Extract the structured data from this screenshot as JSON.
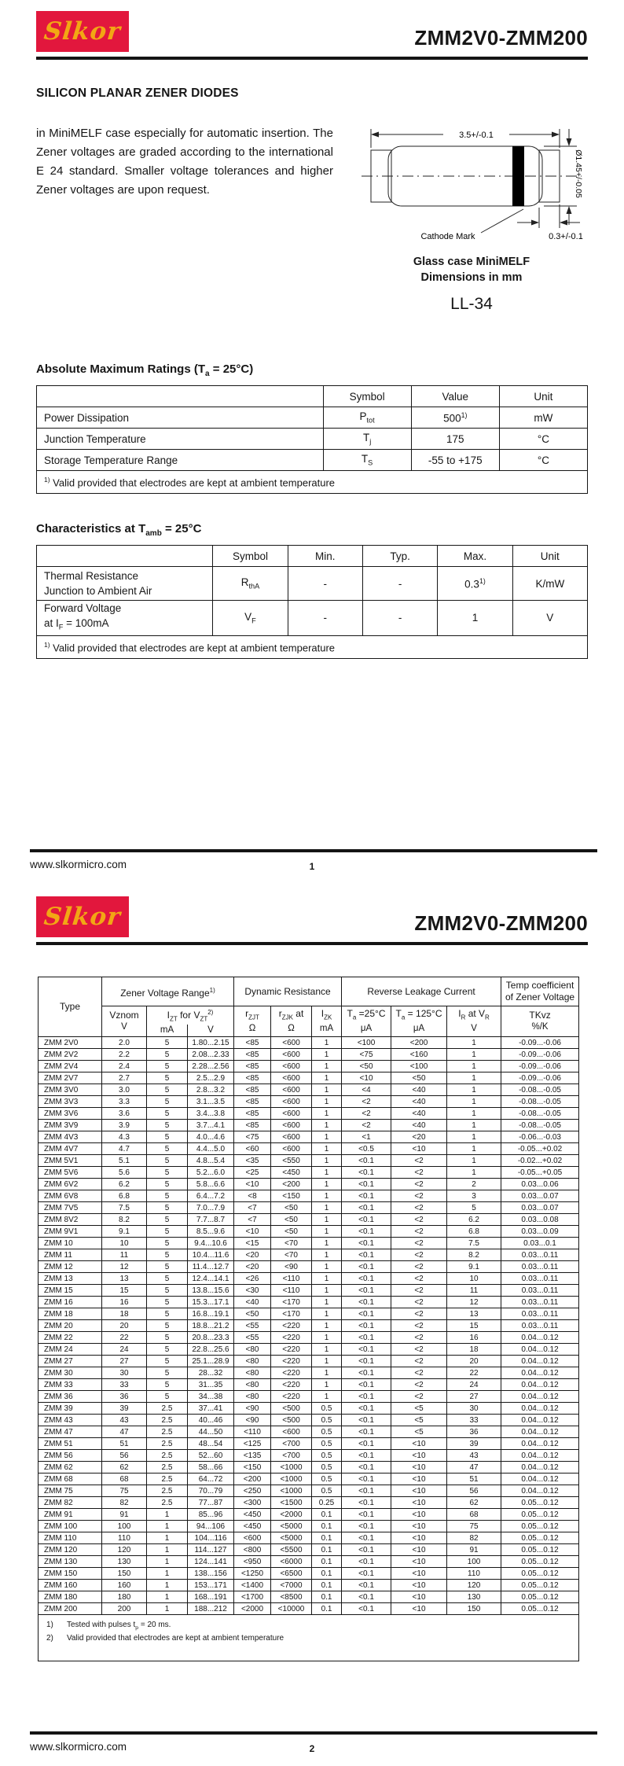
{
  "logo": {
    "text": "Slkor",
    "bg_color": "#E2173D",
    "text_color": "#F2A714"
  },
  "title": "ZMM2V0-ZMM200",
  "footer": {
    "url": "www.slkormicro.com",
    "p1": "1",
    "p2": "2"
  },
  "page1": {
    "heading": "SILICON PLANAR ZENER DIODES",
    "para": "in MiniMELF case especially for automatic insertion. The Zener voltages are graded according to the international E 24 standard. Smaller voltage tolerances and higher Zener voltages are upon request.",
    "pkg": {
      "dim_top": "3.5+/-0.1",
      "dim_right": "Ø1.45+/-0.05",
      "dim_bottom": "0.3+/-0.1",
      "cathode": "Cathode Mark",
      "cap1": "Glass case MiniMELF",
      "cap2": "Dimensions in mm",
      "case": "LL-34"
    },
    "amr": {
      "title": {
        "p": "Absolute Maximum Ratings (T",
        "s": "a",
        "q": " = 25°C)"
      },
      "cols": {
        "sym": "Symbol",
        "val": "Value",
        "unit": "Unit"
      },
      "rows": [
        {
          "name": "Power Dissipation",
          "sp": "P",
          "ss": "tot",
          "v": "500",
          "vsup": "1)",
          "u": "mW"
        },
        {
          "name": "Junction Temperature",
          "sp": "T",
          "ss": "j",
          "v": "175",
          "vsup": "",
          "u": "°C"
        },
        {
          "name": "Storage Temperature Range",
          "sp": "T",
          "ss": "S",
          "v": "-55 to +175",
          "vsup": "",
          "u": "°C"
        }
      ],
      "fn": {
        "sup": "1)",
        "t": " Valid provided that electrodes are kept at ambient temperature"
      }
    },
    "chr": {
      "title": {
        "p": "Characteristics at T",
        "s": "amb",
        "q": " = 25°C"
      },
      "cols": {
        "sym": "Symbol",
        "min": "Min.",
        "typ": "Typ.",
        "max": "Max.",
        "unit": "Unit"
      },
      "rows": [
        {
          "n1": "Thermal Resistance",
          "n2": "Junction to Ambient Air",
          "sp": "R",
          "ss": "thA",
          "min": "-",
          "typ": "-",
          "max": "0.3",
          "msup": "1)",
          "u": "K/mW"
        },
        {
          "n1": "Forward Voltage",
          "n2a": "at I",
          "n2s": "F",
          "n2b": " = 100mA",
          "sp": "V",
          "ss": "F",
          "min": "-",
          "typ": "-",
          "max": "1",
          "msup": "",
          "u": "V"
        }
      ],
      "fn": {
        "sup": "1)",
        "t": " Valid provided that electrodes are kept at ambient temperature"
      }
    }
  },
  "zh": {
    "type": "Type",
    "zvr": {
      "t": "Zener Voltage Range",
      "sup": "1)"
    },
    "dyn": "Dynamic Resistance",
    "rlc": "Reverse Leakage Current",
    "tc1": "Temp coefficient",
    "tc2": "of Zener Voltage",
    "vznom": "Vznom",
    "vznom_u": "V",
    "izt": {
      "p1": "I",
      "s1": "ZT",
      "p2": " for ",
      "p3": "V",
      "s3": "ZT",
      "sup": "2)"
    },
    "izt_u1": "mA",
    "izt_u2": "V",
    "rzjt": {
      "p": "r",
      "s": "ZJT"
    },
    "rzjt_u": "Ω",
    "rzjk": {
      "p": "r",
      "s": "ZJK",
      "post": " at"
    },
    "rzjk_u": "Ω",
    "izk": {
      "p": "I",
      "s": "ZK"
    },
    "izk_u": "mA",
    "t25": {
      "p": "T",
      "s": "a",
      "post": " =25°C"
    },
    "t25_u": "μA",
    "t125": {
      "p": "T",
      "s": "a",
      "post": " = 125°C"
    },
    "t125_u": "μA",
    "irvr": {
      "p1": "I",
      "s1": "R",
      "p2": " at V",
      "s2": "R"
    },
    "irvr_u": "V",
    "tkvz": "TKvz",
    "tkvz_u": "%/K"
  },
  "zrows": [
    [
      "ZMM 2V0",
      "2.0",
      "5",
      "1.80...2.15",
      "<85",
      "<600",
      "1",
      "<100",
      "<200",
      "1",
      "-0.09...-0.06"
    ],
    [
      "ZMM 2V2",
      "2.2",
      "5",
      "2.08...2.33",
      "<85",
      "<600",
      "1",
      "<75",
      "<160",
      "1",
      "-0.09...-0.06"
    ],
    [
      "ZMM 2V4",
      "2.4",
      "5",
      "2.28...2.56",
      "<85",
      "<600",
      "1",
      "<50",
      "<100",
      "1",
      "-0.09...-0.06"
    ],
    [
      "ZMM 2V7",
      "2.7",
      "5",
      "2.5...2.9",
      "<85",
      "<600",
      "1",
      "<10",
      "<50",
      "1",
      "-0.09...-0.06"
    ],
    [
      "ZMM 3V0",
      "3.0",
      "5",
      "2.8...3.2",
      "<85",
      "<600",
      "1",
      "<4",
      "<40",
      "1",
      "-0.08...-0.05"
    ],
    [
      "ZMM 3V3",
      "3.3",
      "5",
      "3.1...3.5",
      "<85",
      "<600",
      "1",
      "<2",
      "<40",
      "1",
      "-0.08...-0.05"
    ],
    [
      "ZMM 3V6",
      "3.6",
      "5",
      "3.4...3.8",
      "<85",
      "<600",
      "1",
      "<2",
      "<40",
      "1",
      "-0.08...-0.05"
    ],
    [
      "ZMM 3V9",
      "3.9",
      "5",
      "3.7...4.1",
      "<85",
      "<600",
      "1",
      "<2",
      "<40",
      "1",
      "-0.08...-0.05"
    ],
    [
      "ZMM 4V3",
      "4.3",
      "5",
      "4.0...4.6",
      "<75",
      "<600",
      "1",
      "<1",
      "<20",
      "1",
      "-0.06...-0.03"
    ],
    [
      "ZMM 4V7",
      "4.7",
      "5",
      "4.4...5.0",
      "<60",
      "<600",
      "1",
      "<0.5",
      "<10",
      "1",
      "-0.05...+0.02"
    ],
    [
      "ZMM 5V1",
      "5.1",
      "5",
      "4.8...5.4",
      "<35",
      "<550",
      "1",
      "<0.1",
      "<2",
      "1",
      "-0.02...+0.02"
    ],
    [
      "ZMM 5V6",
      "5.6",
      "5",
      "5.2...6.0",
      "<25",
      "<450",
      "1",
      "<0.1",
      "<2",
      "1",
      "-0.05...+0.05"
    ],
    [
      "ZMM 6V2",
      "6.2",
      "5",
      "5.8...6.6",
      "<10",
      "<200",
      "1",
      "<0.1",
      "<2",
      "2",
      "0.03...0.06"
    ],
    [
      "ZMM 6V8",
      "6.8",
      "5",
      "6.4...7.2",
      "<8",
      "<150",
      "1",
      "<0.1",
      "<2",
      "3",
      "0.03...0.07"
    ],
    [
      "ZMM 7V5",
      "7.5",
      "5",
      "7.0...7.9",
      "<7",
      "<50",
      "1",
      "<0.1",
      "<2",
      "5",
      "0.03...0.07"
    ],
    [
      "ZMM 8V2",
      "8.2",
      "5",
      "7.7...8.7",
      "<7",
      "<50",
      "1",
      "<0.1",
      "<2",
      "6.2",
      "0.03...0.08"
    ],
    [
      "ZMM 9V1",
      "9.1",
      "5",
      "8.5...9.6",
      "<10",
      "<50",
      "1",
      "<0.1",
      "<2",
      "6.8",
      "0.03...0.09"
    ],
    [
      "ZMM 10",
      "10",
      "5",
      "9.4...10.6",
      "<15",
      "<70",
      "1",
      "<0.1",
      "<2",
      "7.5",
      "0.03...0.1"
    ],
    [
      "ZMM 11",
      "11",
      "5",
      "10.4...11.6",
      "<20",
      "<70",
      "1",
      "<0.1",
      "<2",
      "8.2",
      "0.03...0.11"
    ],
    [
      "ZMM 12",
      "12",
      "5",
      "11.4...12.7",
      "<20",
      "<90",
      "1",
      "<0.1",
      "<2",
      "9.1",
      "0.03...0.11"
    ],
    [
      "ZMM 13",
      "13",
      "5",
      "12.4...14.1",
      "<26",
      "<110",
      "1",
      "<0.1",
      "<2",
      "10",
      "0.03...0.11"
    ],
    [
      "ZMM 15",
      "15",
      "5",
      "13.8...15.6",
      "<30",
      "<110",
      "1",
      "<0.1",
      "<2",
      "11",
      "0.03...0.11"
    ],
    [
      "ZMM 16",
      "16",
      "5",
      "15.3...17.1",
      "<40",
      "<170",
      "1",
      "<0.1",
      "<2",
      "12",
      "0.03...0.11"
    ],
    [
      "ZMM 18",
      "18",
      "5",
      "16.8...19.1",
      "<50",
      "<170",
      "1",
      "<0.1",
      "<2",
      "13",
      "0.03...0.11"
    ],
    [
      "ZMM 20",
      "20",
      "5",
      "18.8...21.2",
      "<55",
      "<220",
      "1",
      "<0.1",
      "<2",
      "15",
      "0.03...0.11"
    ],
    [
      "ZMM 22",
      "22",
      "5",
      "20.8...23.3",
      "<55",
      "<220",
      "1",
      "<0.1",
      "<2",
      "16",
      "0.04...0.12"
    ],
    [
      "ZMM 24",
      "24",
      "5",
      "22.8...25.6",
      "<80",
      "<220",
      "1",
      "<0.1",
      "<2",
      "18",
      "0.04...0.12"
    ],
    [
      "ZMM 27",
      "27",
      "5",
      "25.1...28.9",
      "<80",
      "<220",
      "1",
      "<0.1",
      "<2",
      "20",
      "0.04...0.12"
    ],
    [
      "ZMM 30",
      "30",
      "5",
      "28...32",
      "<80",
      "<220",
      "1",
      "<0.1",
      "<2",
      "22",
      "0.04...0.12"
    ],
    [
      "ZMM 33",
      "33",
      "5",
      "31...35",
      "<80",
      "<220",
      "1",
      "<0.1",
      "<2",
      "24",
      "0.04...0.12"
    ],
    [
      "ZMM 36",
      "36",
      "5",
      "34...38",
      "<80",
      "<220",
      "1",
      "<0.1",
      "<2",
      "27",
      "0.04...0.12"
    ],
    [
      "ZMM 39",
      "39",
      "2.5",
      "37...41",
      "<90",
      "<500",
      "0.5",
      "<0.1",
      "<5",
      "30",
      "0.04...0.12"
    ],
    [
      "ZMM 43",
      "43",
      "2.5",
      "40...46",
      "<90",
      "<500",
      "0.5",
      "<0.1",
      "<5",
      "33",
      "0.04...0.12"
    ],
    [
      "ZMM 47",
      "47",
      "2.5",
      "44...50",
      "<110",
      "<600",
      "0.5",
      "<0.1",
      "<5",
      "36",
      "0.04...0.12"
    ],
    [
      "ZMM 51",
      "51",
      "2.5",
      "48...54",
      "<125",
      "<700",
      "0.5",
      "<0.1",
      "<10",
      "39",
      "0.04...0.12"
    ],
    [
      "ZMM 56",
      "56",
      "2.5",
      "52...60",
      "<135",
      "<700",
      "0.5",
      "<0.1",
      "<10",
      "43",
      "0.04...0.12"
    ],
    [
      "ZMM 62",
      "62",
      "2.5",
      "58...66",
      "<150",
      "<1000",
      "0.5",
      "<0.1",
      "<10",
      "47",
      "0.04...0.12"
    ],
    [
      "ZMM 68",
      "68",
      "2.5",
      "64...72",
      "<200",
      "<1000",
      "0.5",
      "<0.1",
      "<10",
      "51",
      "0.04...0.12"
    ],
    [
      "ZMM 75",
      "75",
      "2.5",
      "70...79",
      "<250",
      "<1000",
      "0.5",
      "<0.1",
      "<10",
      "56",
      "0.04...0.12"
    ],
    [
      "ZMM 82",
      "82",
      "2.5",
      "77...87",
      "<300",
      "<1500",
      "0.25",
      "<0.1",
      "<10",
      "62",
      "0.05...0.12"
    ],
    [
      "ZMM 91",
      "91",
      "1",
      "85...96",
      "<450",
      "<2000",
      "0.1",
      "<0.1",
      "<10",
      "68",
      "0.05...0.12"
    ],
    [
      "ZMM 100",
      "100",
      "1",
      "94...106",
      "<450",
      "<5000",
      "0.1",
      "<0.1",
      "<10",
      "75",
      "0.05...0.12"
    ],
    [
      "ZMM 110",
      "110",
      "1",
      "104...116",
      "<600",
      "<5000",
      "0.1",
      "<0.1",
      "<10",
      "82",
      "0.05...0.12"
    ],
    [
      "ZMM 120",
      "120",
      "1",
      "114...127",
      "<800",
      "<5500",
      "0.1",
      "<0.1",
      "<10",
      "91",
      "0.05...0.12"
    ],
    [
      "ZMM 130",
      "130",
      "1",
      "124...141",
      "<950",
      "<6000",
      "0.1",
      "<0.1",
      "<10",
      "100",
      "0.05...0.12"
    ],
    [
      "ZMM 150",
      "150",
      "1",
      "138...156",
      "<1250",
      "<6500",
      "0.1",
      "<0.1",
      "<10",
      "110",
      "0.05...0.12"
    ],
    [
      "ZMM 160",
      "160",
      "1",
      "153...171",
      "<1400",
      "<7000",
      "0.1",
      "<0.1",
      "<10",
      "120",
      "0.05...0.12"
    ],
    [
      "ZMM 180",
      "180",
      "1",
      "168...191",
      "<1700",
      "<8500",
      "0.1",
      "<0.1",
      "<10",
      "130",
      "0.05...0.12"
    ],
    [
      "ZMM 200",
      "200",
      "1",
      "188...212",
      "<2000",
      "<10000",
      "0.1",
      "<0.1",
      "<10",
      "150",
      "0.05...0.12"
    ]
  ],
  "zfn": {
    "n1": "1)",
    "t1a": "Tested with pulses t",
    "t1s": "p",
    "t1b": " = 20 ms.",
    "n2": "2)",
    "t2": "Valid provided that electrodes are kept at ambient temperature"
  }
}
